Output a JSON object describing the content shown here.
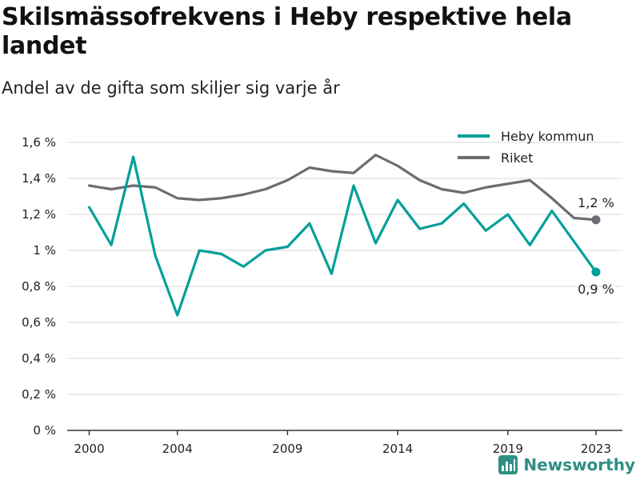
{
  "title": "Skilsmässofrekvens i Heby respektive hela landet",
  "subtitle": "Andel av de gifta som skiljer sig varje år",
  "brand": "Newsworthy",
  "colors": {
    "heby": "#00a099",
    "riket": "#6e6c72",
    "grid": "#d9d9d9",
    "axis": "#333333"
  },
  "chart_data": {
    "type": "line",
    "x": [
      2000,
      2001,
      2002,
      2003,
      2004,
      2005,
      2006,
      2007,
      2008,
      2009,
      2010,
      2011,
      2012,
      2013,
      2014,
      2015,
      2016,
      2017,
      2018,
      2019,
      2020,
      2021,
      2022,
      2023
    ],
    "series": [
      {
        "name": "Heby kommun",
        "values": [
          1.24,
          1.03,
          1.52,
          0.97,
          0.64,
          1.0,
          0.98,
          0.91,
          1.0,
          1.02,
          1.15,
          0.87,
          1.36,
          1.04,
          1.28,
          1.12,
          1.15,
          1.26,
          1.11,
          1.2,
          1.03,
          1.22,
          1.05,
          0.88
        ]
      },
      {
        "name": "Riket",
        "values": [
          1.36,
          1.34,
          1.36,
          1.35,
          1.29,
          1.28,
          1.29,
          1.31,
          1.34,
          1.39,
          1.46,
          1.44,
          1.43,
          1.53,
          1.47,
          1.39,
          1.34,
          1.32,
          1.35,
          1.37,
          1.39,
          1.29,
          1.18,
          1.17
        ]
      }
    ],
    "ylim": [
      0,
      1.6
    ],
    "yticks": [
      0,
      0.2,
      0.4,
      0.6,
      0.8,
      1.0,
      1.2,
      1.4,
      1.6
    ],
    "ytick_labels": [
      "0 %",
      "0,2 %",
      "0,4 %",
      "0,6 %",
      "0,8 %",
      "1 %",
      "1,2 %",
      "1,4 %",
      "1,6 %"
    ],
    "xticks": [
      2000,
      2004,
      2009,
      2014,
      2019,
      2023
    ],
    "xtick_labels": [
      "2000",
      "2004",
      "2009",
      "2014",
      "2019",
      "2023"
    ],
    "end_labels": {
      "Heby kommun": "0,9 %",
      "Riket": "1,2 %"
    },
    "grid": true,
    "legend": "top-right",
    "xlabel": "",
    "ylabel": ""
  }
}
